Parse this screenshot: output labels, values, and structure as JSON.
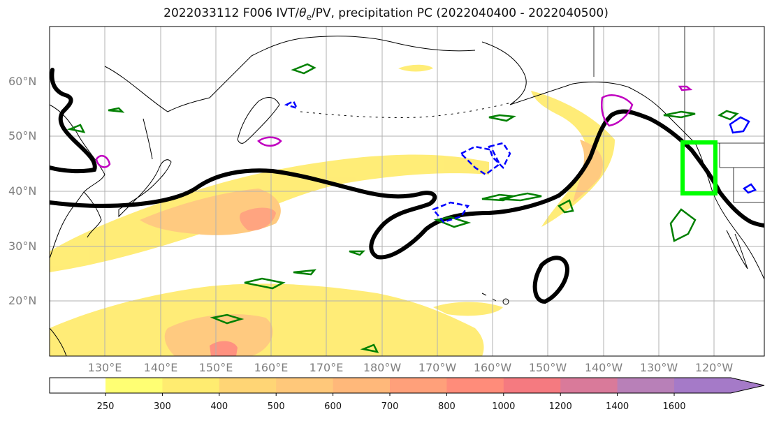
{
  "title": {
    "prefix": "2022033112 F006 IVT/",
    "theta": "θ",
    "theta_sub": "e",
    "suffix": "/PV, precipitation PC (2022040400 - 2022040500)"
  },
  "lat_labels": [
    "60°N",
    "50°N",
    "40°N",
    "30°N",
    "20°N"
  ],
  "lon_labels": [
    "130°E",
    "140°E",
    "150°E",
    "160°E",
    "170°E",
    "180°W",
    "170°W",
    "160°W",
    "150°W",
    "140°W",
    "130°W",
    "120°W"
  ],
  "colorbar": {
    "labels": [
      "250",
      "300",
      "400",
      "500",
      "600",
      "700",
      "800",
      "1000",
      "1200",
      "1400",
      "1600"
    ],
    "colors": [
      "#ffff73",
      "#ffec70",
      "#ffd575",
      "#ffc87a",
      "#ffb87a",
      "#ffa07a",
      "#ff8c7a",
      "#f57a80",
      "#d97a9a",
      "#b880b8",
      "#a57ac8"
    ]
  },
  "colors": {
    "coast": "#000000",
    "grid": "#b0b0b0",
    "jet_contour": "#000000",
    "pv_green": "#008000",
    "pv_blue": "#0000ff",
    "pv_magenta": "#c000c0",
    "target_box": "#00ff00"
  }
}
